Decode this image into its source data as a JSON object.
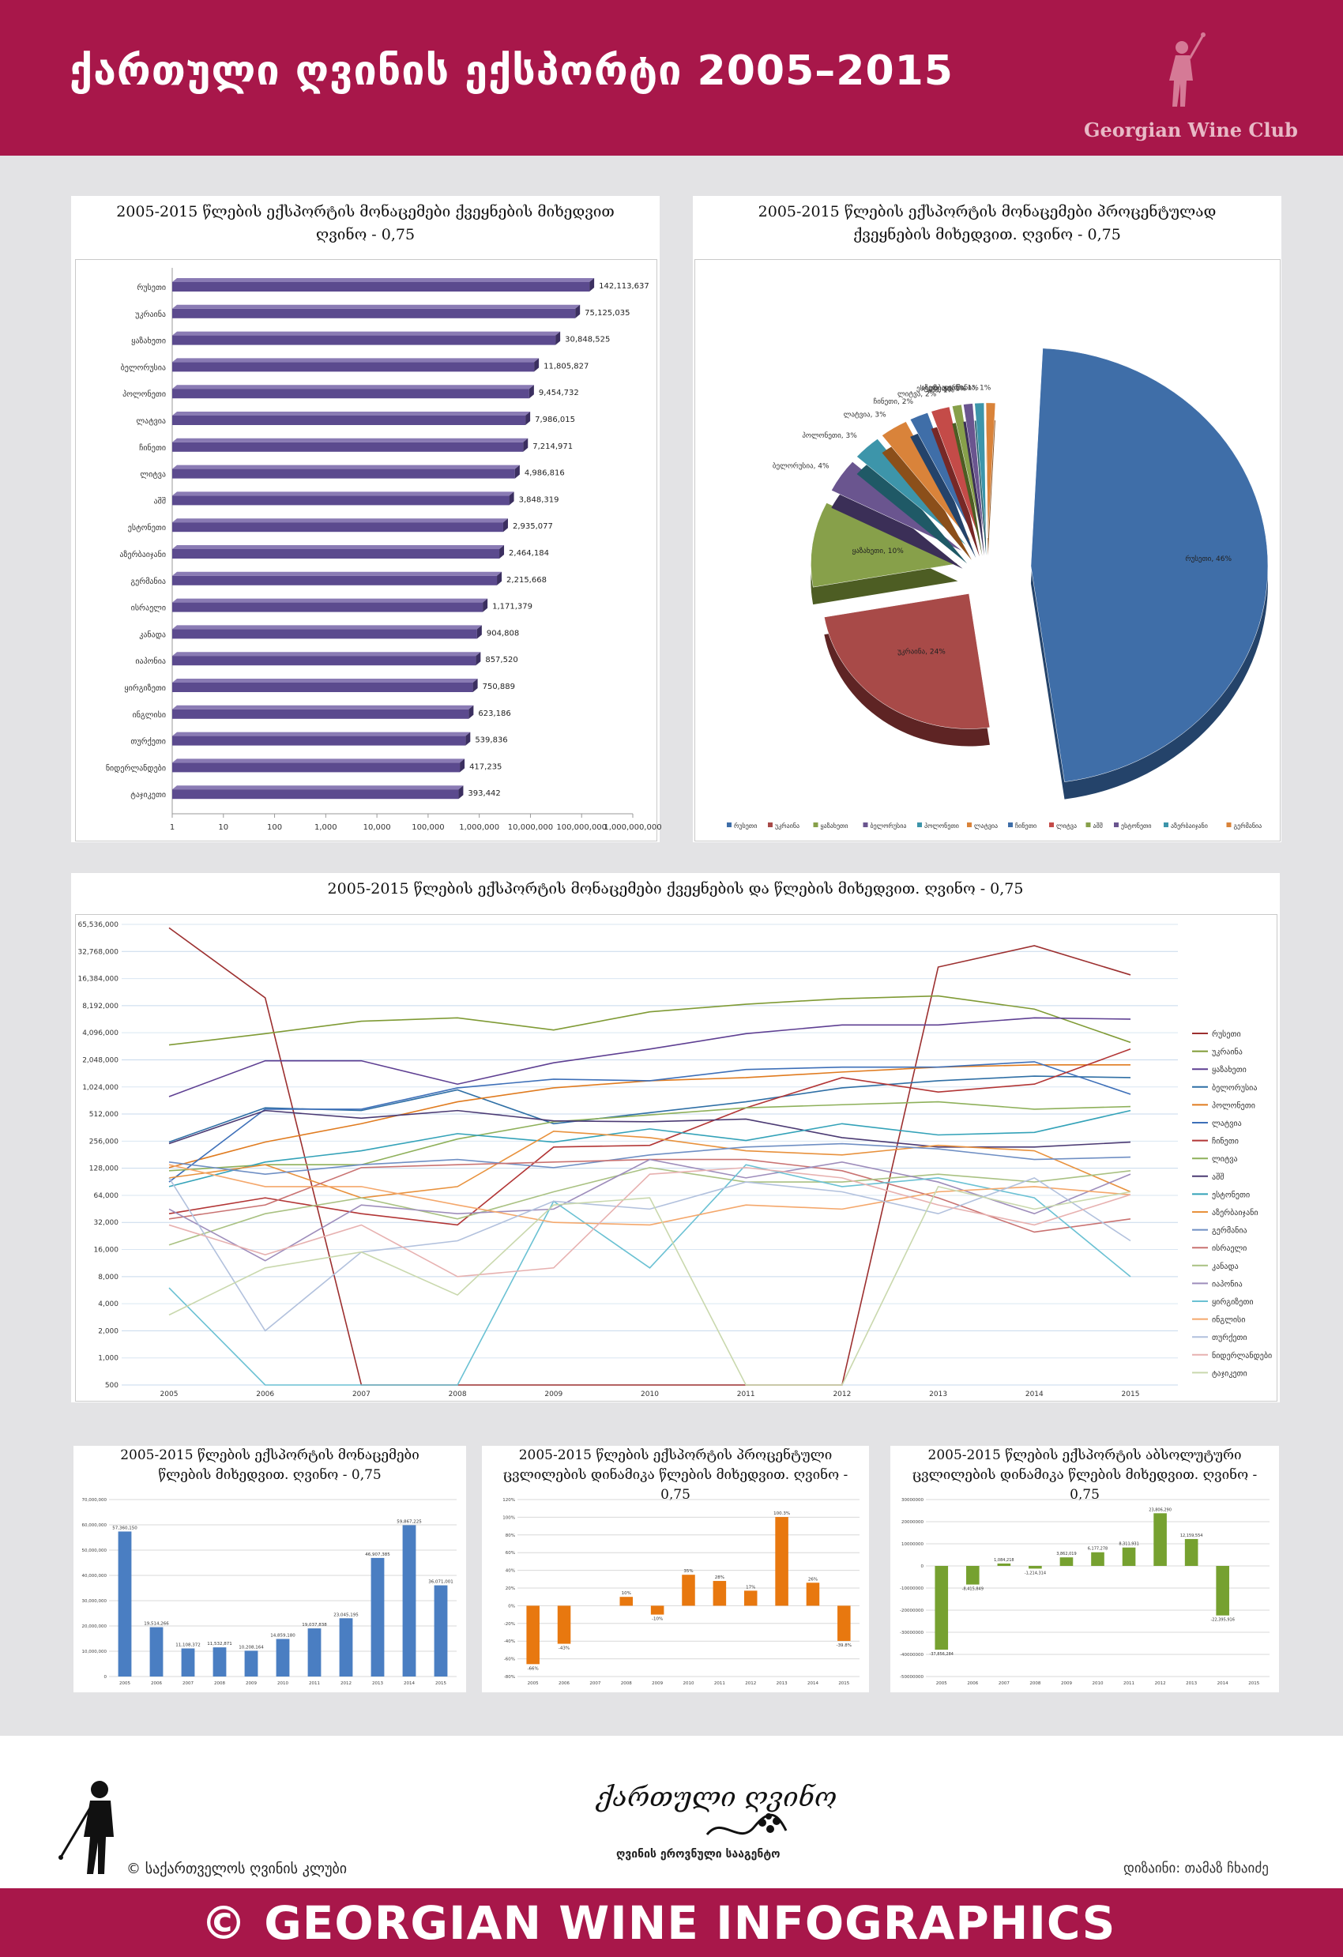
{
  "header": {
    "title": "ქართული ღვინის ექსპორტი 2005–2015",
    "brand": "Georgian Wine Club"
  },
  "footer": {
    "copyright_left": "© საქართველოს ღვინის კლუბი",
    "center_logo_text": "ქართული ღვინო",
    "center_subtitle": "ღვინის ეროვნული სააგენტო",
    "designer": "დიზაინი: თამაზ ჩხაიძე",
    "banner": "© GEORGIAN WINE INFOGRAPHICS"
  },
  "colors": {
    "brand": "#a8174a",
    "bar": "#5b4a8e",
    "pie": [
      "#3f6ea8",
      "#a84a48",
      "#87a04a",
      "#6a558f",
      "#3d95aa",
      "#d9833a",
      "#3f6ea8",
      "#c44b48",
      "#87a04a",
      "#6a558f",
      "#3d95aa",
      "#d9833a"
    ],
    "lines": [
      "#9c2f2f",
      "#7f9a34",
      "#5e3f92",
      "#2f6fa5",
      "#e07b1f",
      "#3d6fb8",
      "#b23535",
      "#8eb05a",
      "#4b3a73",
      "#33a2b8",
      "#e8913c",
      "#6f8fc4",
      "#c97271",
      "#a9c182",
      "#9e8dbb",
      "#6ac1d3",
      "#f4a76b",
      "#b2c1dd",
      "#e7b1b0",
      "#c9d8ad"
    ]
  },
  "chart_data": [
    {
      "type": "bar",
      "title": "2005-2015 წლების ექსპორტის მონაცემები ქვეყნების მიხედვით ღვინო - 0,75",
      "orientation": "horizontal",
      "scale": "log",
      "categories": [
        "რუსეთი",
        "უკრაინა",
        "ყაზახეთი",
        "ბელორუსია",
        "პოლონეთი",
        "ლატვია",
        "ჩინეთი",
        "ლიტვა",
        "აშშ",
        "ესტონეთი",
        "აზერბაიჯანი",
        "გერმანია",
        "ისრაელი",
        "კანადა",
        "იაპონია",
        "ყირგიზეთი",
        "ინგლისი",
        "თურქეთი",
        "ნიდერლანდები",
        "ტაჯიკეთი"
      ],
      "values": [
        142113637,
        75125035,
        30848525,
        11805827,
        9454732,
        7986015,
        7214971,
        4986816,
        3848319,
        2935077,
        2464184,
        2215668,
        1171379,
        904808,
        857520,
        750889,
        623186,
        539836,
        417235,
        393442
      ],
      "value_labels": [
        "142,113,637",
        "75,125,035",
        "30,848,525",
        "11,805,827",
        "9,454,732",
        "7,986,015",
        "7,214,971",
        "4,986,816",
        "3,848,319",
        "2,935,077",
        "2,464,184",
        "2,215,668",
        "1,171,379",
        "904,808",
        "857,520",
        "750,889",
        "623,186",
        "539,836",
        "417,235",
        "393,442"
      ],
      "x_ticks": [
        "1",
        "10",
        "100",
        "1,000",
        "10,000",
        "100,000",
        "1,000,000",
        "10,000,000",
        "100,000,000",
        "1,000,000,000"
      ]
    },
    {
      "type": "pie",
      "title": "2005-2015 წლების ექსპორტის მონაცემები პროცენტულად ქვეყნების მიხედვით. ღვინო - 0,75",
      "slices": [
        {
          "label": "რუსეთი, 46%",
          "name": "რუსეთი",
          "value": 46
        },
        {
          "label": "უკრაინა, 24%",
          "name": "უკრაინა",
          "value": 24
        },
        {
          "label": "ყაზახეთი, 10%",
          "name": "ყაზახეთი",
          "value": 10
        },
        {
          "label": "ბელორუსია, 4%",
          "name": "ბელორუსია",
          "value": 4
        },
        {
          "label": "პოლონეთი, 3%",
          "name": "პოლონეთი",
          "value": 3
        },
        {
          "label": "ლატვია, 3%",
          "name": "ლატვია",
          "value": 3
        },
        {
          "label": "ჩინეთი, 2%",
          "name": "ჩინეთი",
          "value": 2
        },
        {
          "label": "ლიტვა, 2%",
          "name": "ლიტვა",
          "value": 2
        },
        {
          "label": "აშშ, 1%",
          "name": "აშშ",
          "value": 1
        },
        {
          "label": "ესტონეთი, 1%",
          "name": "ესტონეთი",
          "value": 1
        },
        {
          "label": "აზერბაიჯანი, 1%",
          "name": "აზერბაიჯანი",
          "value": 1
        },
        {
          "label": "გერმანია, 1%",
          "name": "გერმანია",
          "value": 1
        }
      ],
      "legend": "bottom"
    },
    {
      "type": "line",
      "title": "2005-2015 წლების ექსპორტის მონაცემები ქვეყნების და წლების მიხედვით. ღვინო - 0,75",
      "scale": "log",
      "x": [
        "2005",
        "2006",
        "2007",
        "2008",
        "2009",
        "2010",
        "2011",
        "2012",
        "2013",
        "2014",
        "2015"
      ],
      "y_ticks": [
        "500",
        "1,000",
        "2,000",
        "4,000",
        "8,000",
        "16,000",
        "32,000",
        "64,000",
        "128,000",
        "256,000",
        "512,000",
        "1,024,000",
        "2,048,000",
        "4,096,000",
        "8,192,000",
        "16,384,000",
        "32,768,000",
        "65,536,000"
      ],
      "legend": "right",
      "series": [
        {
          "name": "რუსეთი",
          "values": [
            60000000,
            10000000,
            300,
            300,
            300,
            300,
            300,
            300,
            22000000,
            38000000,
            18000000
          ]
        },
        {
          "name": "უკრაინა",
          "values": [
            3000000,
            4000000,
            5500000,
            6000000,
            4400000,
            7000000,
            8500000,
            9800000,
            10500000,
            7500000,
            3200000
          ]
        },
        {
          "name": "ყაზახეთი",
          "values": [
            800000,
            2000000,
            2000000,
            1100000,
            1900000,
            2700000,
            4000000,
            5000000,
            5000000,
            6000000,
            5800000
          ]
        },
        {
          "name": "ბელორუსია",
          "values": [
            250000,
            600000,
            560000,
            950000,
            400000,
            530000,
            700000,
            1000000,
            1200000,
            1350000,
            1300000
          ]
        },
        {
          "name": "პოლონეთი",
          "values": [
            130000,
            250000,
            400000,
            700000,
            1000000,
            1200000,
            1300000,
            1500000,
            1700000,
            1800000,
            1800000
          ]
        },
        {
          "name": "ლატვია",
          "values": [
            90000,
            580000,
            580000,
            1000000,
            1250000,
            1200000,
            1600000,
            1700000,
            1700000,
            1950000,
            850000
          ]
        },
        {
          "name": "ჩინეთი",
          "values": [
            40000,
            60000,
            40000,
            30000,
            220000,
            230000,
            600000,
            1300000,
            900000,
            1100000,
            2700000
          ]
        },
        {
          "name": "ლიტვა",
          "values": [
            120000,
            140000,
            140000,
            270000,
            420000,
            500000,
            600000,
            650000,
            700000,
            580000,
            620000
          ]
        },
        {
          "name": "აშშ",
          "values": [
            240000,
            560000,
            460000,
            560000,
            430000,
            420000,
            450000,
            280000,
            220000,
            220000,
            250000
          ]
        },
        {
          "name": "ესტონეთი",
          "values": [
            80000,
            150000,
            200000,
            310000,
            250000,
            350000,
            260000,
            400000,
            300000,
            320000,
            560000
          ]
        },
        {
          "name": "აზერბაიჯანი",
          "values": [
            100000,
            140000,
            60000,
            80000,
            330000,
            280000,
            200000,
            180000,
            230000,
            200000,
            70000
          ]
        },
        {
          "name": "გერმანია",
          "values": [
            150000,
            110000,
            140000,
            160000,
            130000,
            180000,
            220000,
            240000,
            210000,
            160000,
            170000
          ]
        },
        {
          "name": "ისრაელი",
          "values": [
            35000,
            50000,
            130000,
            140000,
            150000,
            160000,
            160000,
            120000,
            60000,
            25000,
            35000
          ]
        },
        {
          "name": "კანადა",
          "values": [
            18000,
            40000,
            60000,
            35000,
            70000,
            130000,
            90000,
            90000,
            110000,
            90000,
            120000
          ]
        },
        {
          "name": "იაპონია",
          "values": [
            45000,
            12000,
            50000,
            40000,
            45000,
            160000,
            100000,
            150000,
            90000,
            40000,
            110000
          ]
        },
        {
          "name": "ყირგიზეთი",
          "values": [
            6000,
            400,
            400,
            400,
            55000,
            10000,
            140000,
            80000,
            100000,
            60000,
            8000
          ]
        },
        {
          "name": "ინგლისი",
          "values": [
            140000,
            80000,
            80000,
            50000,
            32000,
            30000,
            50000,
            45000,
            70000,
            80000,
            65000
          ]
        },
        {
          "name": "თურქეთი",
          "values": [
            100000,
            2000,
            15000,
            20000,
            55000,
            45000,
            90000,
            70000,
            40000,
            100000,
            20000
          ]
        },
        {
          "name": "ნიდერლანდები",
          "values": [
            30000,
            14000,
            30000,
            8000,
            10000,
            110000,
            130000,
            100000,
            50000,
            30000,
            65000
          ]
        },
        {
          "name": "ტაჯიკეთი",
          "values": [
            3000,
            10000,
            15000,
            5000,
            50000,
            60000,
            400,
            400,
            80000,
            45000,
            70000
          ]
        }
      ]
    },
    {
      "type": "bar",
      "title": "2005-2015 წლების ექსპორტის მონაცემები წლების მიხედვით. ღვინო - 0,75",
      "categories": [
        "2005",
        "2006",
        "2007",
        "2008",
        "2009",
        "2010",
        "2011",
        "2012",
        "2013",
        "2014",
        "2015"
      ],
      "values": [
        57360150,
        19514266,
        11108372,
        11532871,
        10208164,
        14859180,
        19037838,
        23045195,
        46907385,
        59867225,
        36071001
      ],
      "value_labels": [
        "57,360,150",
        "19,514,266",
        "11,108,372",
        "11,532,871",
        "10,208,164",
        "14,859,180",
        "19,037,838",
        "23,045,195",
        "46,907,385",
        "59,867,225",
        "36,071,001"
      ],
      "y_ticks": [
        "0",
        "10,000,000",
        "20,000,000",
        "30,000,000",
        "40,000,000",
        "50,000,000",
        "60,000,000",
        "70,000,000"
      ],
      "ylim": [
        0,
        70000000
      ]
    },
    {
      "type": "bar",
      "title": "2005-2015 წლების ექსპორტის პროცენტული ცვლილების დინამიკა წლების მიხედვით. ღვინო - 0,75",
      "categories": [
        "2005",
        "2006",
        "2007",
        "2008",
        "2009",
        "2010",
        "2011",
        "2012",
        "2013",
        "2014",
        "2015"
      ],
      "values": [
        -66,
        -43,
        0,
        10,
        -10,
        35,
        28,
        17,
        100.3,
        26,
        -39.8
      ],
      "value_labels": [
        "-66%",
        "-43%",
        "",
        "10%",
        "-10%",
        "35%",
        "28%",
        "17%",
        "100.3%",
        "26%",
        "-39.8%"
      ],
      "y_ticks": [
        "-80%",
        "-60%",
        "-40%",
        "-20%",
        "0%",
        "20%",
        "40%",
        "60%",
        "80%",
        "100%",
        "120%"
      ],
      "ylim": [
        -80,
        120
      ]
    },
    {
      "type": "bar",
      "title": "2005-2015 წლების ექსპორტის აბსოლუტური ცვლილების დინამიკა წლების მიხედვით. ღვინო - 0,75",
      "categories": [
        "2005",
        "2006",
        "2007",
        "2008",
        "2009",
        "2010",
        "2011",
        "2012",
        "2013",
        "2014",
        "2015"
      ],
      "values": [
        -37856284,
        -8415849,
        1084218,
        -1214314,
        3862019,
        6177278,
        8311931,
        23806290,
        12159554,
        -22395916,
        0
      ],
      "value_labels": [
        "-37,856,284",
        "-8,415,849",
        "1,084,218",
        "-1,214,314",
        "3,862,019",
        "6,177,278",
        "8,311,931",
        "23,806,290",
        "12,159,554",
        "-22,395,916",
        ""
      ],
      "y_ticks": [
        "-50000000",
        "-40000000",
        "-30000000",
        "-20000000",
        "-10000000",
        "0",
        "10000000",
        "20000000",
        "30000000"
      ],
      "ylim": [
        -50000000,
        30000000
      ]
    }
  ]
}
